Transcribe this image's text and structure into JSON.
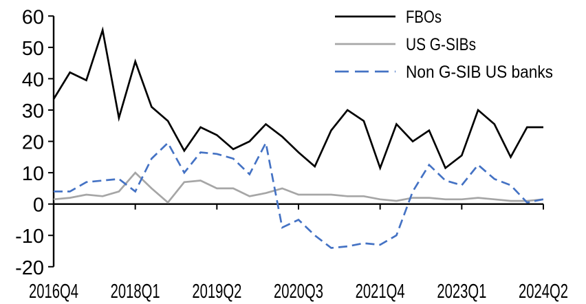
{
  "chart_data": {
    "type": "line",
    "title": "",
    "xlabel": "",
    "ylabel": "",
    "categories": [
      "2016Q4",
      "2017Q1",
      "2017Q2",
      "2017Q3",
      "2017Q4",
      "2018Q1",
      "2018Q2",
      "2018Q3",
      "2018Q4",
      "2019Q1",
      "2019Q2",
      "2019Q3",
      "2019Q4",
      "2020Q1",
      "2020Q2",
      "2020Q3",
      "2020Q4",
      "2021Q1",
      "2021Q2",
      "2021Q3",
      "2021Q4",
      "2022Q1",
      "2022Q2",
      "2022Q3",
      "2022Q4",
      "2023Q1",
      "2023Q2",
      "2023Q3",
      "2023Q4",
      "2024Q1",
      "2024Q2"
    ],
    "x_tick_labels": [
      "2016Q4",
      "2018Q1",
      "2019Q2",
      "2020Q3",
      "2021Q4",
      "2023Q1",
      "2024Q2"
    ],
    "x_tick_indices": [
      0,
      5,
      10,
      15,
      20,
      25,
      30
    ],
    "series": [
      {
        "name": "FBOs",
        "color": "#000000",
        "dash": "solid",
        "values": [
          33.5,
          42,
          39.5,
          55.5,
          27.5,
          45.5,
          31,
          26.5,
          17,
          24.5,
          22,
          17.5,
          20,
          25.5,
          21.5,
          16.5,
          12,
          23.5,
          30,
          26.5,
          11.5,
          25.5,
          20,
          23.5,
          11.5,
          15.5,
          30,
          25.5,
          15,
          24.5,
          24.5
        ]
      },
      {
        "name": "US G-SIBs",
        "color": "#a6a6a6",
        "dash": "solid",
        "values": [
          1.5,
          2,
          3,
          2.5,
          4,
          10,
          5,
          0.5,
          7,
          7.5,
          5,
          5,
          2.5,
          3.5,
          5,
          3,
          3,
          3,
          2.5,
          2.5,
          1.5,
          1,
          2,
          2,
          1.5,
          1.5,
          2,
          1.5,
          1,
          1,
          1.5
        ]
      },
      {
        "name": "Non G-SIB US banks",
        "color": "#4472c4",
        "dash": "dashed",
        "values": [
          4,
          4,
          7,
          7.5,
          8,
          4,
          14.5,
          19.5,
          10,
          16.5,
          16,
          14.5,
          9.5,
          19.5,
          -7.5,
          -5,
          -10,
          -14,
          -13.5,
          -12.5,
          -13,
          -10,
          4,
          12.5,
          7.5,
          6,
          12.5,
          8,
          6,
          0.5,
          1.5
        ]
      }
    ],
    "ylim": [
      -20,
      60
    ],
    "yticks": [
      60,
      50,
      40,
      30,
      20,
      10,
      0,
      -10,
      -20
    ],
    "grid": false,
    "legend_position": "top-right",
    "background": "#ffffff",
    "axis_color": "#000000"
  }
}
